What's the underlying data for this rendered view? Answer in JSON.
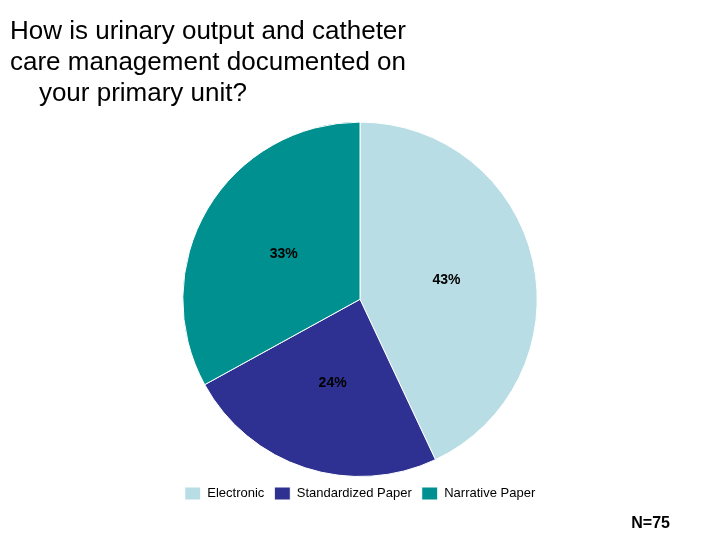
{
  "chart_data": {
    "type": "pie",
    "title": [
      "How is urinary output and catheter",
      "care management documented on",
      "    your primary unit?"
    ],
    "categories": [
      "Electronic",
      "Standardized Paper",
      "Narrative Paper"
    ],
    "values": [
      43,
      24,
      33
    ],
    "value_labels": [
      "43%",
      "24%",
      "33%"
    ],
    "colors": [
      "#b8dde4",
      "#2e3191",
      "#009090"
    ],
    "data_labels": true,
    "legend": "bottom",
    "annotations": [
      "N=75"
    ]
  }
}
